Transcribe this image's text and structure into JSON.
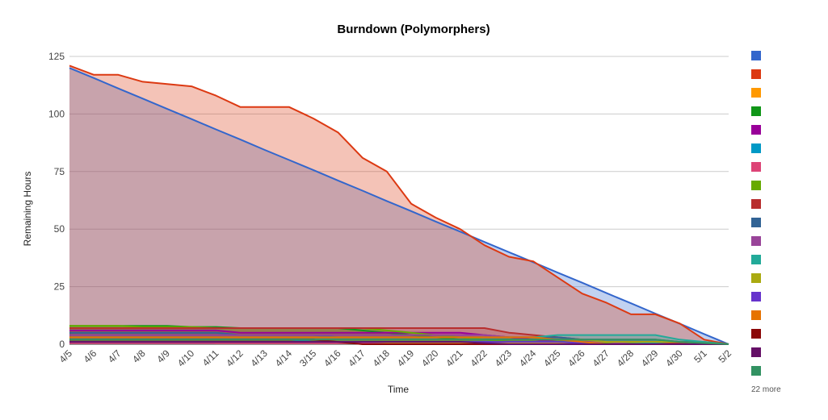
{
  "chart_data": {
    "type": "area",
    "title": "Burndown (Polymorphers)",
    "xlabel": "Time",
    "ylabel": "Remaining Hours",
    "ylim": [
      0,
      125
    ],
    "yticks": [
      0,
      25,
      50,
      75,
      100,
      125
    ],
    "grid": true,
    "legend_position": "right",
    "legend_more_text": "22 more",
    "categories": [
      "4/5",
      "4/6",
      "4/7",
      "4/8",
      "4/9",
      "4/10",
      "4/11",
      "4/12",
      "4/13",
      "4/14",
      "3/15",
      "4/16",
      "4/17",
      "4/18",
      "4/19",
      "4/20",
      "4/21",
      "4/22",
      "4/23",
      "4/24",
      "4/25",
      "4/26",
      "4/27",
      "4/28",
      "4/29",
      "4/30",
      "5/1",
      "5/2"
    ],
    "series": [
      {
        "color": "#3366cc",
        "values": [
          120,
          115.6,
          111.1,
          106.7,
          102.2,
          97.8,
          93.3,
          88.9,
          84.4,
          80,
          75.6,
          71.1,
          66.7,
          62.2,
          57.8,
          53.3,
          48.9,
          44.4,
          40,
          35.6,
          31.1,
          26.7,
          22.2,
          17.8,
          13.3,
          8.9,
          4.4,
          0
        ]
      },
      {
        "color": "#dc3912",
        "values": [
          121,
          117,
          117,
          114,
          113,
          112,
          108,
          103,
          103,
          103,
          98,
          92,
          81,
          75,
          61,
          55,
          50,
          43,
          38,
          36,
          29,
          22,
          18,
          13,
          13,
          9,
          2,
          0
        ]
      },
      {
        "color": "#ff9900",
        "values": [
          1,
          1,
          1,
          1,
          1,
          1,
          0.5,
          0.5,
          0.5,
          0.5,
          0.5,
          0.5,
          0.5,
          0.5,
          0.5,
          0.5,
          0.5,
          0.5,
          0.5,
          0.5,
          0.5,
          0.5,
          0,
          0,
          0,
          0,
          0,
          0
        ]
      },
      {
        "color": "#109618",
        "values": [
          8,
          8,
          8,
          8,
          8,
          7.5,
          7.5,
          7,
          7,
          7,
          7,
          7,
          6,
          5,
          4,
          3,
          2,
          2,
          2,
          2,
          2,
          1,
          1,
          1,
          1,
          0.5,
          0.5,
          0
        ]
      },
      {
        "color": "#990099",
        "values": [
          6,
          6,
          6,
          6,
          6,
          6,
          6,
          5,
          5,
          5,
          5,
          5,
          5,
          5,
          5,
          5,
          5,
          4,
          3,
          2,
          1,
          1,
          0,
          0,
          0,
          0,
          0,
          0
        ]
      },
      {
        "color": "#0099c6",
        "values": [
          2,
          2,
          2,
          2,
          2,
          2,
          2,
          2,
          2,
          2,
          1,
          1,
          1,
          1,
          1,
          1,
          1,
          1,
          1,
          1,
          1,
          1,
          1,
          1,
          0.5,
          0.5,
          0,
          0
        ]
      },
      {
        "color": "#dd4477",
        "values": [
          0.5,
          0.5,
          0.5,
          0.5,
          0.5,
          0.5,
          0.5,
          0.5,
          0.5,
          0.5,
          0.5,
          0.5,
          0.5,
          0,
          0,
          0,
          0,
          0,
          0,
          0,
          0,
          0,
          0,
          0,
          0,
          0,
          0,
          0
        ]
      },
      {
        "color": "#66aa00",
        "values": [
          8,
          8,
          8,
          7.5,
          7.5,
          7.5,
          7,
          7,
          7,
          7,
          7,
          7,
          7,
          6,
          5,
          4,
          3,
          2,
          1,
          1,
          1,
          0.5,
          0.5,
          0,
          0,
          0,
          0,
          0
        ]
      },
      {
        "color": "#b82e2e",
        "values": [
          7,
          7,
          7,
          7,
          7,
          7,
          7,
          7,
          7,
          7,
          7,
          7,
          7,
          7,
          7,
          7,
          7,
          7,
          5,
          4,
          3,
          2,
          1,
          1,
          1,
          0.5,
          0,
          0
        ]
      },
      {
        "color": "#316395",
        "values": [
          5,
          5,
          5,
          5,
          5,
          5,
          5,
          4,
          4,
          4,
          4,
          3,
          3,
          3,
          3,
          3,
          3,
          3,
          3,
          3,
          3,
          2,
          2,
          2,
          2,
          1,
          1,
          0
        ]
      },
      {
        "color": "#994499",
        "values": [
          4,
          4,
          4,
          4,
          4,
          4,
          4,
          4,
          4,
          4,
          4,
          4,
          4,
          4,
          4,
          4,
          4,
          4,
          3,
          3,
          2,
          1,
          1,
          0,
          0,
          0,
          0,
          0
        ]
      },
      {
        "color": "#22aa99",
        "values": [
          3,
          3,
          3,
          3,
          3,
          3,
          3,
          3,
          3,
          3,
          3,
          3,
          3,
          3,
          3,
          3,
          3,
          3,
          3,
          3,
          4,
          4,
          4,
          4,
          4,
          2,
          1,
          0
        ]
      },
      {
        "color": "#aaaa11",
        "values": [
          2,
          2,
          2,
          2,
          2,
          2,
          2,
          2,
          2,
          2,
          2,
          2,
          2,
          2,
          2,
          2,
          2,
          2,
          2,
          2,
          2,
          2,
          1,
          1,
          1,
          1,
          0.5,
          0
        ]
      },
      {
        "color": "#6633cc",
        "values": [
          1,
          1,
          1,
          1,
          1,
          1,
          1,
          1,
          1,
          1,
          1,
          1,
          1,
          1,
          1,
          1,
          1,
          1,
          1,
          1,
          1,
          0.5,
          0,
          0,
          0,
          0,
          0,
          0
        ]
      },
      {
        "color": "#e67300",
        "values": [
          3,
          3,
          3,
          3,
          3,
          3,
          3,
          3,
          3,
          3,
          3,
          3,
          3,
          3,
          3,
          3,
          3,
          3,
          3,
          3,
          2,
          1,
          0,
          0,
          0,
          0,
          0,
          0
        ]
      },
      {
        "color": "#8b0707",
        "values": [
          2,
          2,
          2,
          2,
          2,
          2,
          2,
          2,
          2,
          2,
          2,
          1,
          0,
          0,
          0,
          0,
          0,
          0,
          0,
          0,
          0,
          0,
          0,
          0,
          0,
          0,
          0,
          0
        ]
      },
      {
        "color": "#651067",
        "values": [
          1,
          1,
          1,
          1,
          1,
          1,
          1,
          1,
          1,
          1,
          1,
          1,
          1,
          1,
          1,
          1,
          1,
          0.5,
          0,
          0,
          0,
          0,
          0,
          0,
          0,
          0,
          0,
          0
        ]
      },
      {
        "color": "#329262",
        "values": [
          2,
          2,
          2,
          2,
          2,
          2,
          2,
          2,
          2,
          2,
          2,
          2,
          2,
          2,
          2,
          2,
          2,
          2,
          2,
          2,
          2,
          2,
          2,
          2,
          2,
          1,
          0.5,
          0
        ]
      }
    ]
  }
}
